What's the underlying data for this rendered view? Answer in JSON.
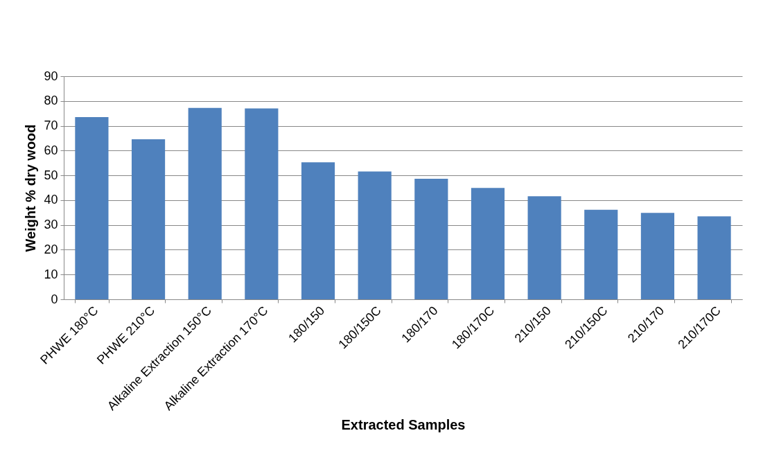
{
  "chart_data": {
    "type": "bar",
    "xlabel": "Extracted Samples",
    "ylabel": "Weight % dry wood",
    "categories": [
      "PHWE 180°C",
      "PHWE 210°C",
      "Alkaline Extraction 150°C",
      "Alkaline Extraction 170°C",
      "180/150",
      "180/150C",
      "180/170",
      "180/170C",
      "210/150",
      "210/150C",
      "210/170",
      "210/170C"
    ],
    "values": [
      73.5,
      64.6,
      77.2,
      77.0,
      55.3,
      51.6,
      48.6,
      44.9,
      41.6,
      36.1,
      34.9,
      33.5
    ],
    "color": "#4f81bd",
    "ylim": [
      0,
      90
    ],
    "yticks": [
      0,
      10,
      20,
      30,
      40,
      50,
      60,
      70,
      80,
      90
    ],
    "grid": "y"
  }
}
